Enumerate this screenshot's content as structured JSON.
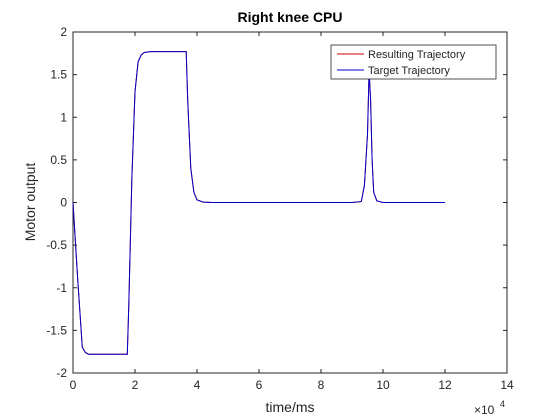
{
  "chart_data": {
    "type": "line",
    "title": "Right knee CPU",
    "xlabel": "time/ms",
    "ylabel": "Motor output",
    "x_exponent_label": "×10",
    "x_exponent_power": "4",
    "xlim": [
      0,
      140000
    ],
    "ylim": [
      -2,
      2
    ],
    "xticks": [
      0,
      20000,
      40000,
      60000,
      80000,
      100000,
      120000,
      140000
    ],
    "xtick_labels": [
      "0",
      "2",
      "4",
      "6",
      "8",
      "10",
      "12",
      "14"
    ],
    "yticks": [
      2,
      1.5,
      1,
      0.5,
      0,
      -0.5,
      -1,
      -1.5,
      -2
    ],
    "ytick_labels": [
      "2",
      "1.5",
      "1",
      "0.5",
      "0",
      "-0.5",
      "-1",
      "-1.5",
      "-2"
    ],
    "grid": false,
    "legend_position": "top-right",
    "series": [
      {
        "name": "Resulting Trajectory",
        "color": "#cc0000",
        "x": [
          0,
          1500,
          3000,
          4000,
          5000,
          10000,
          17500,
          18000,
          19000,
          20000,
          21000,
          22000,
          23000,
          25000,
          30000,
          36500,
          37000,
          38000,
          39000,
          40000,
          42000,
          45000,
          60000,
          80000,
          90000,
          93000,
          94000,
          95000,
          95500,
          96000,
          96500,
          97000,
          98000,
          100000,
          110000,
          120000
        ],
        "y": [
          0,
          -0.9,
          -1.7,
          -1.76,
          -1.78,
          -1.78,
          -1.78,
          -1.2,
          0.3,
          1.3,
          1.65,
          1.73,
          1.76,
          1.77,
          1.77,
          1.77,
          1.2,
          0.4,
          0.12,
          0.03,
          0.005,
          0.0,
          0.0,
          0.0,
          0.0,
          0.01,
          0.2,
          0.8,
          1.55,
          1.2,
          0.5,
          0.12,
          0.02,
          0.0,
          0.0,
          0.0
        ]
      },
      {
        "name": "Target Trajectory",
        "color": "#0000cc",
        "x": [
          0,
          1500,
          3000,
          4000,
          5000,
          10000,
          17500,
          18000,
          19000,
          20000,
          21000,
          22000,
          23000,
          25000,
          30000,
          36500,
          37000,
          38000,
          39000,
          40000,
          42000,
          45000,
          60000,
          80000,
          90000,
          93000,
          94000,
          95000,
          95500,
          96000,
          96500,
          97000,
          98000,
          100000,
          110000,
          120000
        ],
        "y": [
          0,
          -0.9,
          -1.7,
          -1.76,
          -1.78,
          -1.78,
          -1.78,
          -1.2,
          0.3,
          1.3,
          1.65,
          1.73,
          1.76,
          1.77,
          1.77,
          1.77,
          1.2,
          0.4,
          0.12,
          0.03,
          0.005,
          0.0,
          0.0,
          0.0,
          0.0,
          0.01,
          0.2,
          0.8,
          1.55,
          1.2,
          0.5,
          0.12,
          0.02,
          0.0,
          0.0,
          0.0
        ]
      }
    ]
  }
}
